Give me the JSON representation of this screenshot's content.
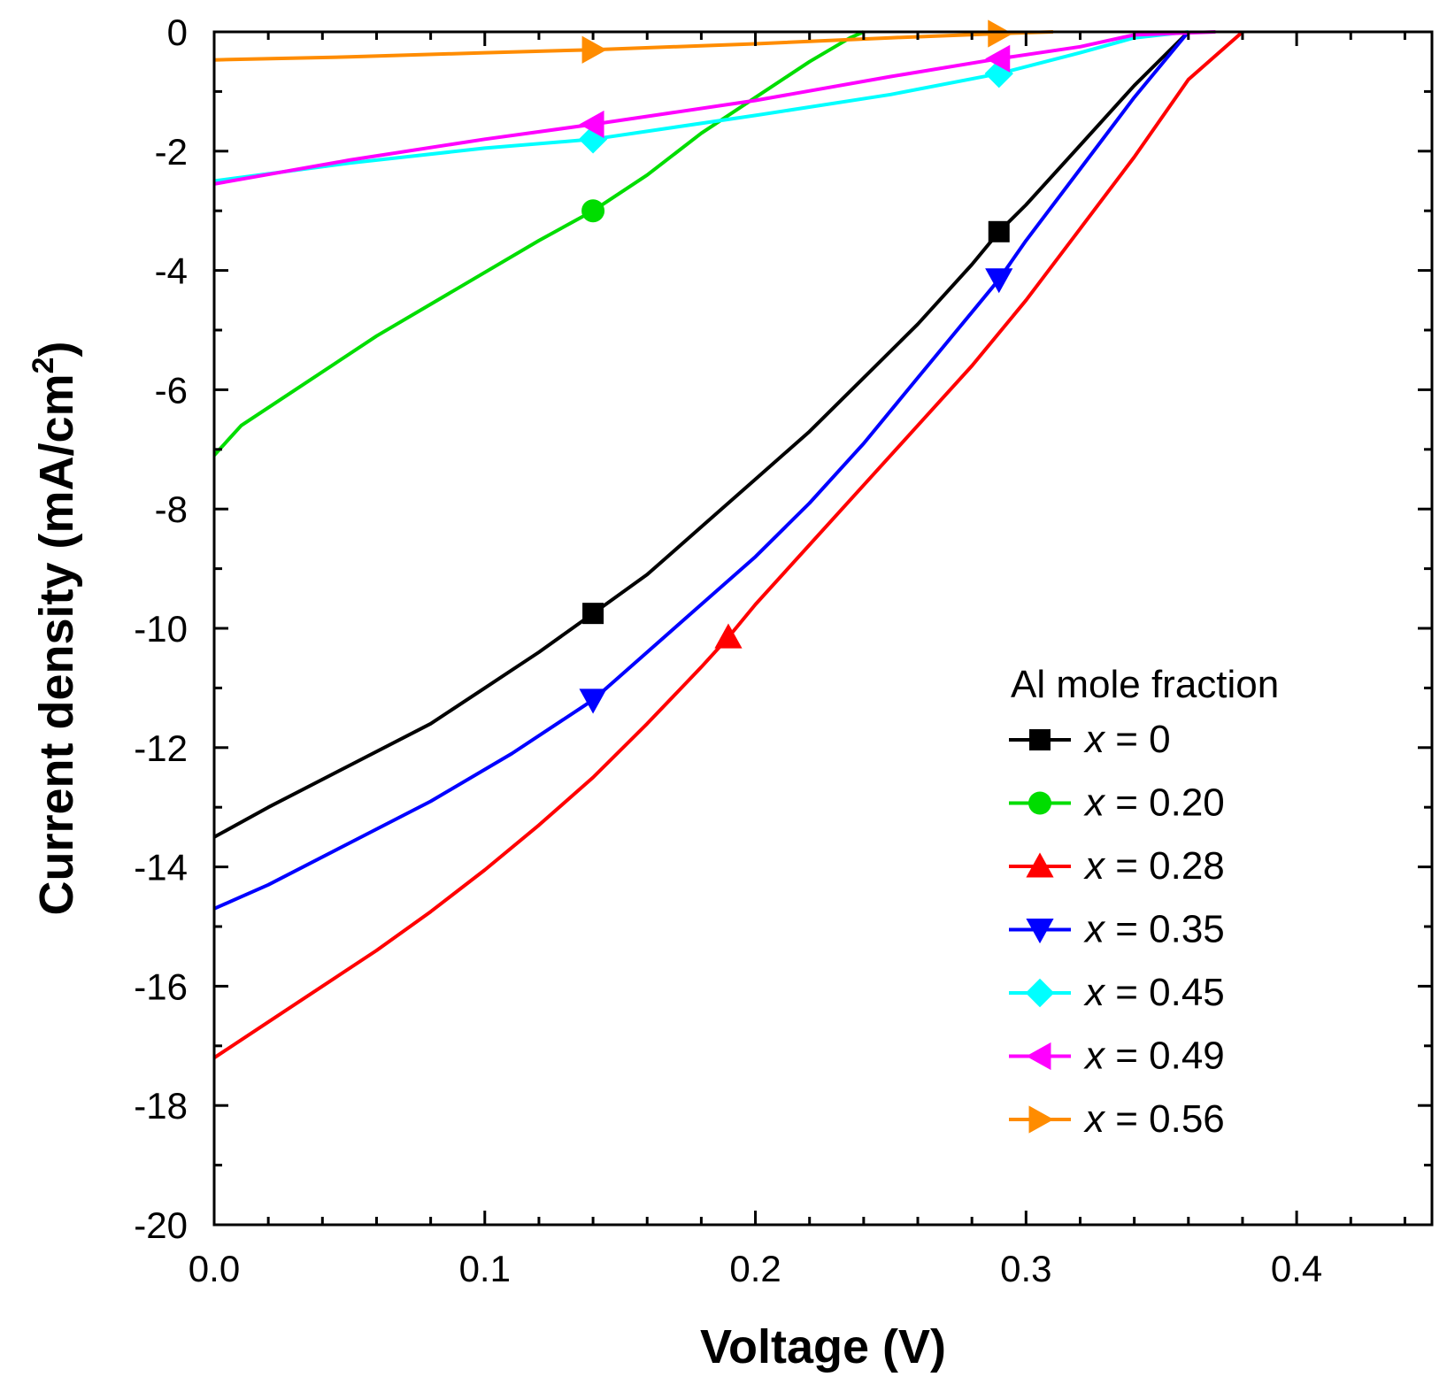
{
  "chart_data": {
    "type": "line",
    "xlabel": "Voltage (V)",
    "ylabel_main": "Current density (mA/cm",
    "ylabel_sup": "2",
    "ylabel_close": ")",
    "xlim": [
      0.0,
      0.45
    ],
    "ylim": [
      -20,
      0
    ],
    "xticks": [
      0.0,
      0.1,
      0.2,
      0.3,
      0.4
    ],
    "xtick_labels": [
      "0.0",
      "0.1",
      "0.2",
      "0.3",
      "0.4"
    ],
    "yticks": [
      0,
      -2,
      -4,
      -6,
      -8,
      -10,
      -12,
      -14,
      -16,
      -18,
      -20
    ],
    "ytick_labels": [
      "0",
      "-2",
      "-4",
      "-6",
      "-8",
      "-10",
      "-12",
      "-14",
      "-16",
      "-18",
      "-20"
    ],
    "grid": false,
    "legend": {
      "title": "Al mole fraction",
      "position": "bottom-right",
      "var": "x",
      "eq": " = "
    },
    "series": [
      {
        "name": "0",
        "color": "#000000",
        "marker": "square",
        "x": [
          0.0,
          0.02,
          0.05,
          0.08,
          0.1,
          0.12,
          0.14,
          0.16,
          0.18,
          0.2,
          0.22,
          0.24,
          0.26,
          0.28,
          0.29,
          0.3,
          0.32,
          0.34,
          0.36
        ],
        "y": [
          -13.5,
          -13.0,
          -12.3,
          -11.6,
          -11.0,
          -10.4,
          -9.75,
          -9.1,
          -8.3,
          -7.5,
          -6.7,
          -5.8,
          -4.9,
          -3.9,
          -3.35,
          -2.9,
          -1.9,
          -0.9,
          0.0
        ],
        "markers_x": [
          0.14,
          0.29
        ],
        "markers_y": [
          -9.75,
          -3.35
        ]
      },
      {
        "name": "0.20",
        "color": "#00dd00",
        "marker": "circle",
        "x": [
          0.0,
          0.01,
          0.03,
          0.06,
          0.09,
          0.12,
          0.14,
          0.16,
          0.18,
          0.2,
          0.22,
          0.235,
          0.24
        ],
        "y": [
          -7.1,
          -6.6,
          -6.0,
          -5.1,
          -4.3,
          -3.5,
          -3.0,
          -2.4,
          -1.7,
          -1.1,
          -0.5,
          -0.1,
          0.0
        ],
        "markers_x": [
          0.14
        ],
        "markers_y": [
          -3.0
        ]
      },
      {
        "name": "0.28",
        "color": "#ff0000",
        "marker": "triangle-up",
        "x": [
          0.0,
          0.02,
          0.04,
          0.06,
          0.08,
          0.1,
          0.12,
          0.14,
          0.16,
          0.18,
          0.19,
          0.2,
          0.22,
          0.24,
          0.26,
          0.28,
          0.3,
          0.32,
          0.34,
          0.36,
          0.38
        ],
        "y": [
          -17.2,
          -16.6,
          -16.0,
          -15.4,
          -14.75,
          -14.05,
          -13.3,
          -12.5,
          -11.6,
          -10.65,
          -10.15,
          -9.6,
          -8.6,
          -7.6,
          -6.6,
          -5.6,
          -4.5,
          -3.3,
          -2.1,
          -0.8,
          0.0
        ],
        "markers_x": [
          0.19
        ],
        "markers_y": [
          -10.15
        ]
      },
      {
        "name": "0.35",
        "color": "#0000ff",
        "marker": "triangle-down",
        "x": [
          0.0,
          0.02,
          0.05,
          0.08,
          0.11,
          0.14,
          0.16,
          0.18,
          0.2,
          0.22,
          0.24,
          0.26,
          0.28,
          0.29,
          0.3,
          0.32,
          0.34,
          0.36
        ],
        "y": [
          -14.7,
          -14.3,
          -13.6,
          -12.9,
          -12.1,
          -11.2,
          -10.4,
          -9.6,
          -8.8,
          -7.9,
          -6.9,
          -5.8,
          -4.7,
          -4.15,
          -3.5,
          -2.3,
          -1.1,
          0.0
        ],
        "markers_x": [
          0.14,
          0.29
        ],
        "markers_y": [
          -11.2,
          -4.15
        ]
      },
      {
        "name": "0.45",
        "color": "#00ffff",
        "marker": "diamond",
        "x": [
          0.0,
          0.05,
          0.1,
          0.14,
          0.2,
          0.25,
          0.29,
          0.32,
          0.34,
          0.36
        ],
        "y": [
          -2.5,
          -2.2,
          -1.95,
          -1.8,
          -1.4,
          -1.05,
          -0.7,
          -0.35,
          -0.1,
          0.0
        ],
        "markers_x": [
          0.14,
          0.29
        ],
        "markers_y": [
          -1.8,
          -0.7
        ]
      },
      {
        "name": "0.49",
        "color": "#ff00ff",
        "marker": "triangle-left",
        "x": [
          0.0,
          0.05,
          0.1,
          0.14,
          0.2,
          0.25,
          0.29,
          0.32,
          0.34,
          0.37
        ],
        "y": [
          -2.55,
          -2.15,
          -1.8,
          -1.55,
          -1.15,
          -0.75,
          -0.45,
          -0.25,
          -0.05,
          0.0
        ],
        "markers_x": [
          0.14,
          0.29
        ],
        "markers_y": [
          -1.55,
          -0.45
        ]
      },
      {
        "name": "0.56",
        "color": "#ff8c00",
        "marker": "triangle-right",
        "x": [
          0.0,
          0.05,
          0.1,
          0.14,
          0.2,
          0.25,
          0.29,
          0.31
        ],
        "y": [
          -0.47,
          -0.42,
          -0.35,
          -0.3,
          -0.2,
          -0.1,
          -0.03,
          0.0
        ],
        "markers_x": [
          0.14,
          0.29
        ],
        "markers_y": [
          -0.3,
          -0.03
        ]
      }
    ]
  }
}
